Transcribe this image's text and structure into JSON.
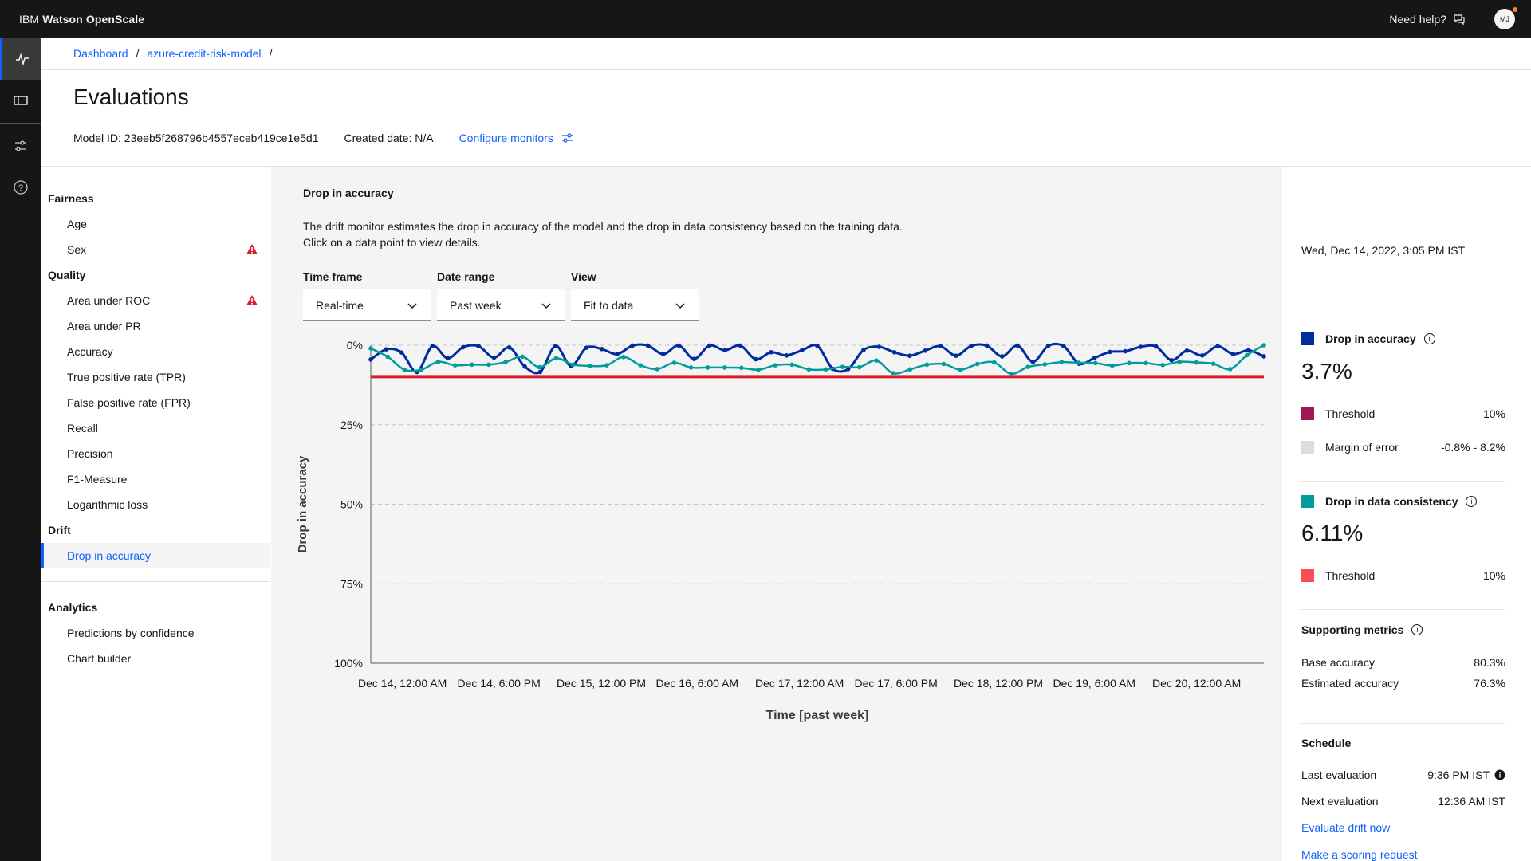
{
  "topbar": {
    "brand_prefix": "IBM",
    "brand_name": "Watson OpenScale",
    "help_label": "Need help?",
    "avatar_initials": "MJ"
  },
  "breadcrumb": {
    "items": [
      "Dashboard",
      "azure-credit-risk-model"
    ],
    "separator": "/"
  },
  "page": {
    "title": "Evaluations",
    "model_id": "Model ID: 23eeb5f268796b4557eceb419ce1e5d1",
    "created_date": "Created date: N/A",
    "configure_label": "Configure monitors"
  },
  "sidenav": {
    "fairness": {
      "label": "Fairness",
      "items": [
        {
          "label": "Age",
          "warn": false
        },
        {
          "label": "Sex",
          "warn": true
        }
      ]
    },
    "quality": {
      "label": "Quality",
      "items": [
        {
          "label": "Area under ROC",
          "warn": true
        },
        {
          "label": "Area under PR"
        },
        {
          "label": "Accuracy"
        },
        {
          "label": "True positive rate (TPR)"
        },
        {
          "label": "False positive rate (FPR)"
        },
        {
          "label": "Recall"
        },
        {
          "label": "Precision"
        },
        {
          "label": "F1-Measure"
        },
        {
          "label": "Logarithmic loss"
        }
      ]
    },
    "drift": {
      "label": "Drift",
      "items": [
        {
          "label": "Drop in accuracy",
          "active": true
        }
      ]
    },
    "analytics": {
      "label": "Analytics",
      "items": [
        {
          "label": "Predictions by confidence"
        },
        {
          "label": "Chart builder"
        }
      ]
    }
  },
  "main": {
    "title": "Drop in accuracy",
    "desc_line1": "The drift monitor estimates the drop in accuracy of the model and the drop in data consistency based on the training data.",
    "desc_line2": "Click on a data point to view details.",
    "controls": [
      {
        "label": "Time frame",
        "value": "Real-time"
      },
      {
        "label": "Date range",
        "value": "Past week"
      },
      {
        "label": "View",
        "value": "Fit to data"
      }
    ]
  },
  "chart_data": {
    "type": "line",
    "title": "",
    "xlabel": "Time [past week]",
    "ylabel": "Drop in accuracy",
    "y_ticks": [
      "0%",
      "25%",
      "50%",
      "75%",
      "100%"
    ],
    "ylim": [
      0,
      100
    ],
    "y_inverted": true,
    "grid": true,
    "x_ticks": [
      "Dec 14, 12:00 AM",
      "Dec 14, 6:00 PM",
      "Dec 15, 12:00 PM",
      "Dec 16, 6:00 AM",
      "Dec 17, 12:00 AM",
      "Dec 17, 6:00 PM",
      "Dec 18, 12:00 PM",
      "Dec 19, 6:00 AM",
      "Dec 20, 12:00 AM"
    ],
    "thresholds": [
      {
        "value": 10,
        "color": "#da1e28"
      }
    ],
    "series": [
      {
        "color": "#002d9c",
        "values": [
          4.5,
          1.3,
          2.3,
          8.4,
          0.3,
          4.1,
          0.6,
          0.3,
          3.9,
          0.7,
          6.7,
          8.4,
          0.2,
          6.5,
          0.8,
          1.2,
          2.8,
          0.1,
          0.1,
          2.8,
          0.1,
          4.3,
          0.1,
          1.6,
          0.1,
          4.4,
          2.2,
          3.2,
          1.6,
          0.2,
          7.4,
          7.5,
          1.5,
          0.5,
          2.2,
          3.3,
          1.7,
          0.3,
          3.3,
          0.2,
          0.1,
          3.5,
          0.1,
          5.2,
          0.2,
          0.3,
          5.8,
          4.0,
          2.1,
          1.9,
          0.5,
          0.4,
          4.7,
          1.7,
          3.2,
          0.3,
          2.8,
          1.6,
          3.5
        ]
      },
      {
        "color": "#009d9a",
        "values": [
          1.0,
          3.6,
          7.7,
          7.7,
          5.2,
          6.3,
          6.1,
          6.1,
          5.3,
          3.6,
          6.9,
          4.1,
          6.1,
          6.5,
          6.3,
          3.7,
          6.3,
          7.5,
          5.5,
          7.0,
          7.0,
          7.0,
          7.1,
          7.7,
          6.3,
          6.1,
          7.6,
          7.6,
          6.8,
          6.9,
          4.8,
          8.8,
          7.6,
          6.1,
          5.9,
          7.7,
          5.9,
          5.4,
          9.0,
          6.8,
          6.0,
          5.3,
          5.5,
          5.6,
          6.4,
          5.6,
          5.6,
          6.2,
          5.2,
          5.4,
          5.8,
          7.5,
          3.1,
          0.0
        ]
      }
    ]
  },
  "right_panel": {
    "timestamp": "Wed, Dec 14, 2022, 3:05 PM IST",
    "accuracy": {
      "label": "Drop in accuracy",
      "value": "3.7%",
      "color": "#002d9c",
      "threshold_label": "Threshold",
      "threshold_value": "10%",
      "threshold_color": "#9f1853",
      "margin_label": "Margin of error",
      "margin_value": "-0.8% - 8.2%",
      "margin_color": "#dcdcdc"
    },
    "consistency": {
      "label": "Drop in data consistency",
      "value": "6.11%",
      "color": "#009d9a",
      "threshold_label": "Threshold",
      "threshold_value": "10%",
      "threshold_color": "#fa4d56"
    },
    "supporting": {
      "title": "Supporting metrics",
      "rows": [
        {
          "label": "Base accuracy",
          "value": "80.3%"
        },
        {
          "label": "Estimated accuracy",
          "value": "76.3%"
        }
      ]
    },
    "schedule": {
      "title": "Schedule",
      "last_label": "Last evaluation",
      "last_value": "9:36 PM IST",
      "next_label": "Next evaluation",
      "next_value": "12:36 AM IST",
      "evaluate_link": "Evaluate drift now",
      "scoring_link": "Make a scoring request"
    }
  }
}
